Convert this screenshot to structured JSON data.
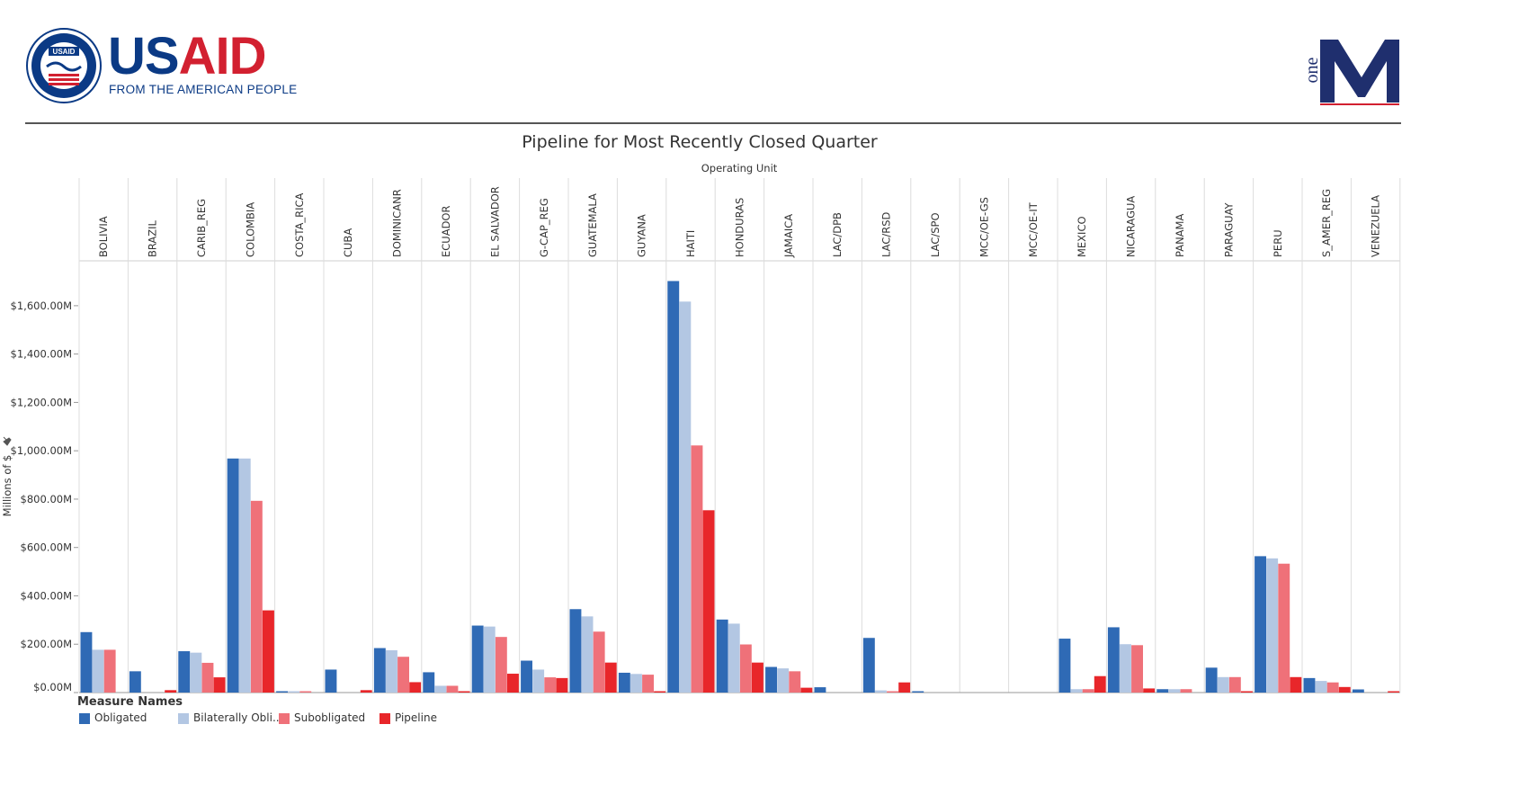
{
  "header": {
    "logo_main_us": "US",
    "logo_main_aid": "AID",
    "tagline": "FROM THE AMERICAN PEOPLE",
    "seal_text": "USAID",
    "onem_text": "one",
    "colors": {
      "usaid_blue": "#0b3a85",
      "usaid_red": "#d22030",
      "onem_navy": "#1f2f6e"
    }
  },
  "chart_data": {
    "type": "bar",
    "title": "Pipeline for Most Recently Closed Quarter",
    "column_header_title": "Operating Unit",
    "ylabel": "Millions of $",
    "ylim": [
      0,
      1700
    ],
    "y_ticks": [
      0,
      200,
      400,
      600,
      800,
      1000,
      1200,
      1400,
      1600
    ],
    "y_tick_labels": [
      "$0.00M",
      "$200.00M",
      "$400.00M",
      "$600.00M",
      "$800.00M",
      "$1,000.00M",
      "$1,200.00M",
      "$1,400.00M",
      "$1,600.00M"
    ],
    "grid": "vertical",
    "legend_title": "Measure Names",
    "legend_position": "bottom-left",
    "categories": [
      "BOLIVIA",
      "BRAZIL",
      "CARIB_REG",
      "COLOMBIA",
      "COSTA_RICA",
      "CUBA",
      "DOMINICANR",
      "ECUADOR",
      "EL SALVADOR",
      "G-CAP_REG",
      "GUATEMALA",
      "GUYANA",
      "HAITI",
      "HONDURAS",
      "JAMAICA",
      "LAC/DPB",
      "LAC/RSD",
      "LAC/SPO",
      "MCC/OE-GS",
      "MCC/OE-IT",
      "MEXICO",
      "NICARAGUA",
      "PANAMA",
      "PARAGUAY",
      "PERU",
      "S_AMER_REG",
      "VENEZUELA"
    ],
    "series": [
      {
        "name": "Obligated",
        "color": "#2f6ab5",
        "values": [
          250,
          88,
          171,
          968,
          3,
          95,
          184,
          84,
          277,
          132,
          345,
          82,
          1702,
          302,
          106,
          22,
          226,
          2,
          0,
          0,
          223,
          270,
          14,
          103,
          564,
          60,
          13
        ]
      },
      {
        "name": "Bilaterally Obli..",
        "color": "#b3c7e3",
        "values": [
          177,
          0,
          165,
          968,
          2,
          0,
          175,
          28,
          273,
          95,
          315,
          77,
          1617,
          285,
          100,
          0,
          9,
          0,
          0,
          0,
          14,
          200,
          14,
          64,
          555,
          48,
          0
        ]
      },
      {
        "name": "Subobligated",
        "color": "#ef7179",
        "values": [
          177,
          0,
          123,
          793,
          3,
          0,
          148,
          28,
          230,
          63,
          252,
          74,
          1022,
          199,
          88,
          0,
          5,
          0,
          0,
          0,
          14,
          196,
          14,
          64,
          533,
          42,
          0
        ]
      },
      {
        "name": "Pipeline",
        "color": "#e8262a",
        "values": [
          0,
          10,
          63,
          340,
          0,
          10,
          43,
          5,
          78,
          60,
          124,
          3,
          754,
          124,
          20,
          0,
          42,
          0,
          0,
          0,
          68,
          17,
          0,
          3,
          64,
          23,
          5
        ]
      }
    ]
  }
}
